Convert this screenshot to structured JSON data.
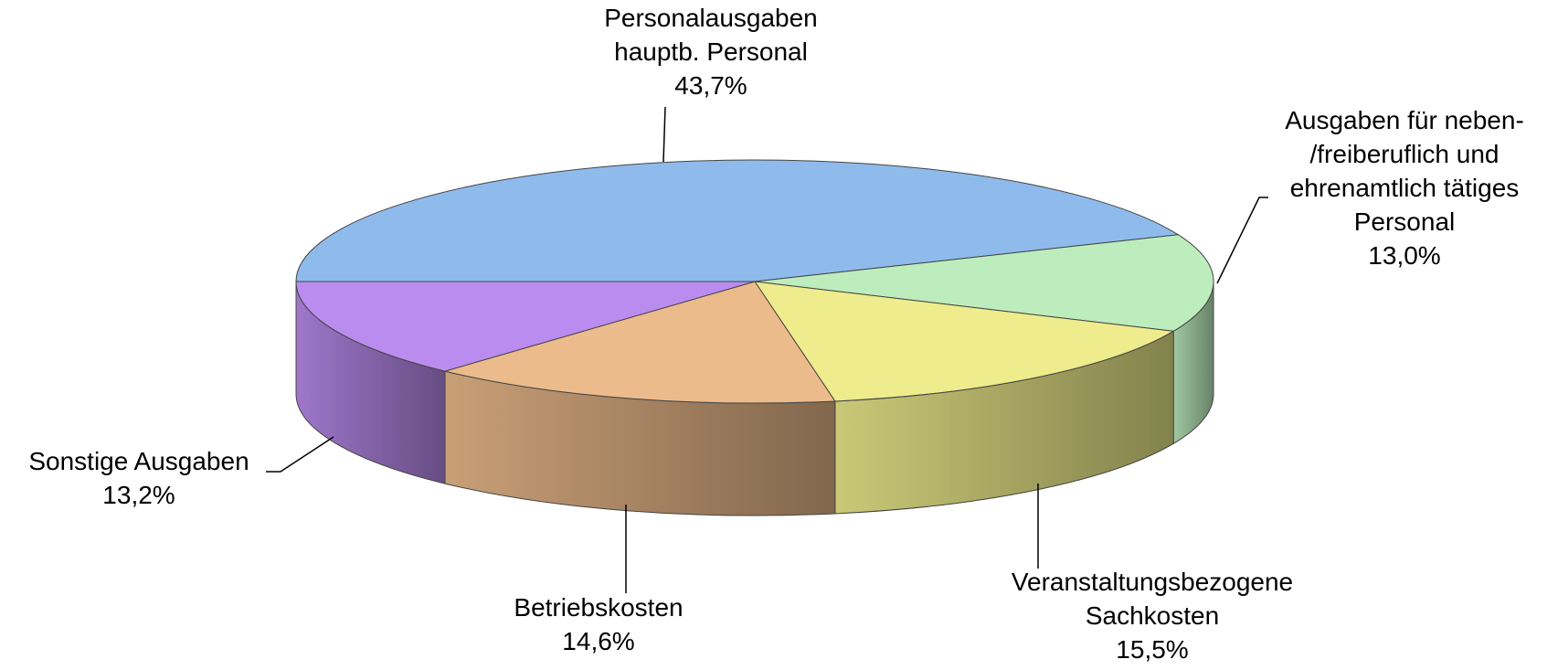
{
  "chart_data": {
    "type": "pie3d",
    "categories": [
      "Personalausgaben\nhauptb. Personal",
      "Ausgaben für neben-\n/freiberuflich und\nehrenamtlich tätiges\nPersonal",
      "Veranstaltungsbezogene\nSachkosten",
      "Betriebskosten",
      "Sonstige Ausgaben"
    ],
    "values": [
      43.7,
      13.0,
      15.5,
      14.6,
      13.2
    ],
    "value_labels": [
      "43,7%",
      "13,0%",
      "15,5%",
      "14,6%",
      "13,2%"
    ],
    "colors": [
      "#8fbbec",
      "#bdedbd",
      "#eeec8c",
      "#ecbb8c",
      "#bb8cef"
    ]
  }
}
